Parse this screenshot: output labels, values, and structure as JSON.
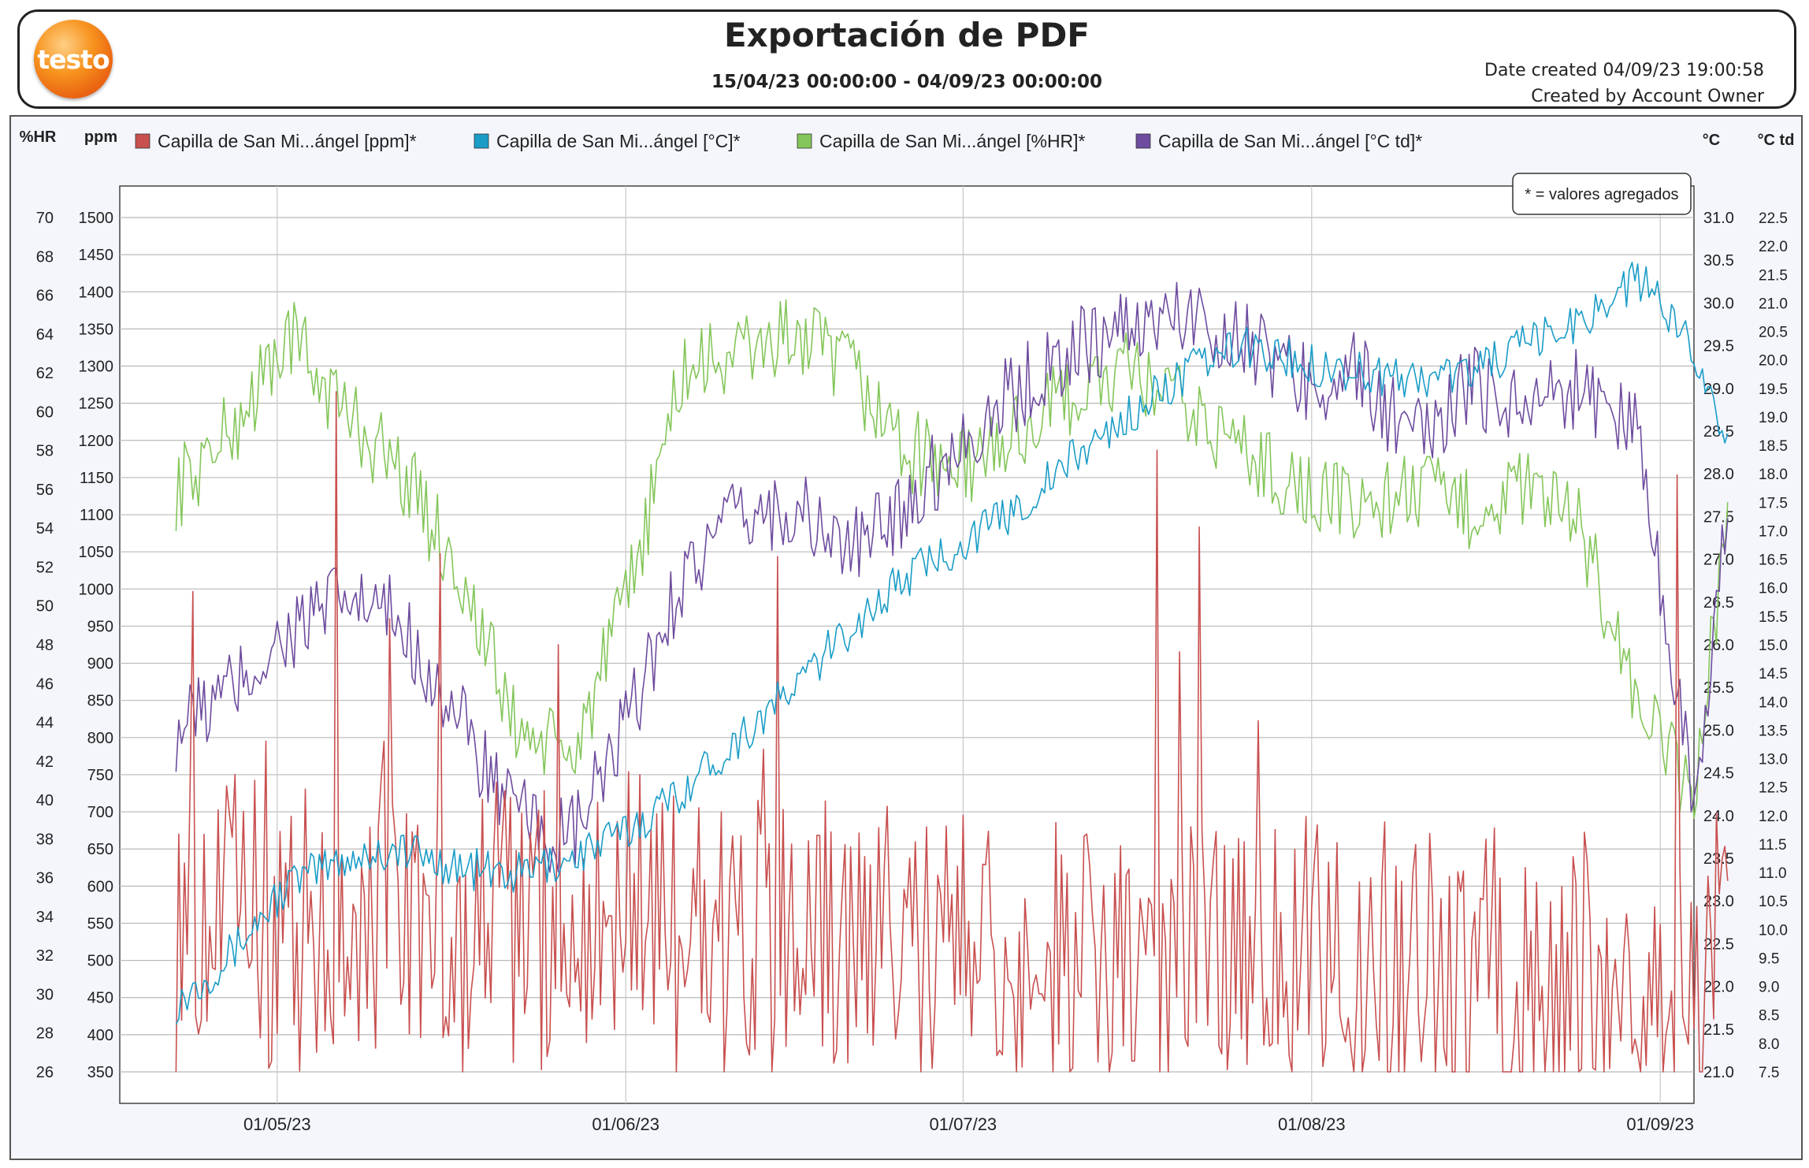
{
  "header": {
    "logo_text": "testo",
    "title": "Exportación de PDF",
    "date_range": "15/04/23 00:00:00 - 04/09/23 00:00:00",
    "date_created": "Date created 04/09/23 19:00:58",
    "created_by": "Created by Account Owner"
  },
  "chart_data": {
    "type": "line",
    "title": "Exportación de PDF",
    "x_range": [
      "17/04/23",
      "04/09/23"
    ],
    "x_ticks": [
      "01/05/23",
      "01/06/23",
      "01/07/23",
      "01/08/23",
      "01/09/23"
    ],
    "note": "* = valores agregados",
    "axes": {
      "hr": {
        "label": "%HR",
        "min": 26,
        "max": 70,
        "ticks": [
          "70",
          "68",
          "66",
          "64",
          "62",
          "60",
          "58",
          "56",
          "54",
          "52",
          "50",
          "48",
          "46",
          "44",
          "42",
          "40",
          "38",
          "36",
          "34",
          "32",
          "30",
          "28",
          "26"
        ]
      },
      "ppm": {
        "label": "ppm",
        "min": 350,
        "max": 1500,
        "ticks": [
          "1500",
          "1450",
          "1400",
          "1350",
          "1300",
          "1250",
          "1200",
          "1150",
          "1100",
          "1050",
          "1000",
          "950",
          "900",
          "850",
          "800",
          "750",
          "700",
          "650",
          "600",
          "550",
          "500",
          "450",
          "400",
          "350"
        ]
      },
      "temp": {
        "label": "°C",
        "min": 21.0,
        "max": 31.0,
        "ticks": [
          "31.0",
          "30.5",
          "30.0",
          "29.5",
          "29.0",
          "28.5",
          "28.0",
          "27.5",
          "27.0",
          "26.5",
          "26.0",
          "25.5",
          "25.0",
          "24.5",
          "24.0",
          "23.5",
          "23.0",
          "22.5",
          "22.0",
          "21.5",
          "21.0"
        ]
      },
      "td": {
        "label": "°C td",
        "min": 7.5,
        "max": 22.5,
        "ticks": [
          "22.5",
          "22.0",
          "21.5",
          "21.0",
          "20.5",
          "20.0",
          "19.5",
          "19.0",
          "18.5",
          "18.0",
          "17.5",
          "17.0",
          "16.5",
          "16.0",
          "15.5",
          "15.0",
          "14.5",
          "14.0",
          "13.5",
          "13.0",
          "12.5",
          "12.0",
          "11.5",
          "11.0",
          "10.5",
          "10.0",
          "9.5",
          "9.0",
          "8.5",
          "8.0",
          "7.5"
        ]
      }
    },
    "series": [
      {
        "name": "Capilla de San Mi...ángel [ppm]*",
        "axis": "ppm",
        "color": "#c8504f",
        "x": [
          0,
          5,
          10,
          15,
          20,
          25,
          30,
          35,
          40,
          45,
          50,
          55,
          60,
          65,
          70,
          75,
          80,
          85,
          90,
          95,
          100,
          105,
          110,
          115,
          120,
          125,
          130,
          135,
          138
        ],
        "values": [
          540,
          560,
          550,
          560,
          540,
          545,
          555,
          530,
          560,
          545,
          520,
          540,
          510,
          520,
          510,
          500,
          505,
          510,
          495,
          490,
          495,
          500,
          495,
          490,
          470,
          475,
          480,
          485,
          520
        ]
      },
      {
        "name": "Capilla de San Mi...ángel [°C]*",
        "axis": "temp",
        "color": "#1a9cc7",
        "x": [
          0,
          5,
          10,
          15,
          20,
          25,
          30,
          35,
          40,
          45,
          50,
          55,
          60,
          65,
          70,
          75,
          80,
          85,
          90,
          95,
          100,
          105,
          110,
          115,
          120,
          125,
          130,
          135,
          138
        ],
        "values": [
          21.8,
          22.4,
          23.2,
          23.5,
          23.6,
          23.4,
          23.3,
          23.5,
          23.8,
          24.3,
          24.9,
          25.5,
          26.2,
          26.8,
          27.2,
          27.6,
          28.2,
          28.7,
          29.2,
          29.5,
          29.3,
          29.2,
          29.1,
          29.2,
          29.5,
          29.8,
          30.3,
          29.5,
          28.3
        ]
      },
      {
        "name": "Capilla de San Mi...ángel [%HR]*",
        "axis": "hr",
        "color": "#84c65a",
        "x": [
          0,
          5,
          10,
          15,
          20,
          25,
          30,
          35,
          40,
          45,
          50,
          55,
          60,
          65,
          70,
          75,
          80,
          85,
          90,
          95,
          100,
          105,
          110,
          115,
          120,
          125,
          130,
          135,
          138
        ],
        "values": [
          56,
          59,
          64,
          60,
          57,
          52,
          44,
          42,
          50,
          62,
          63,
          64,
          62,
          58,
          57,
          59,
          61,
          62,
          60,
          58,
          56,
          55,
          56,
          55,
          56,
          54,
          45,
          40,
          55
        ]
      },
      {
        "name": "Capilla de San Mi...ángel [°C td]*",
        "axis": "td",
        "color": "#6e4c9f",
        "x": [
          0,
          5,
          10,
          15,
          20,
          25,
          30,
          35,
          40,
          45,
          50,
          55,
          60,
          65,
          70,
          75,
          80,
          85,
          90,
          95,
          100,
          105,
          110,
          115,
          120,
          125,
          130,
          135,
          138
        ],
        "values": [
          13.5,
          14.2,
          15.2,
          15.8,
          15.4,
          13.7,
          12.0,
          11.5,
          13.5,
          16.2,
          17.2,
          17.4,
          16.6,
          17.5,
          18.6,
          19.5,
          20.2,
          20.6,
          20.8,
          20.4,
          19.6,
          19.8,
          18.5,
          19.5,
          19.3,
          19.5,
          18.8,
          12.3,
          17.5
        ]
      }
    ]
  }
}
